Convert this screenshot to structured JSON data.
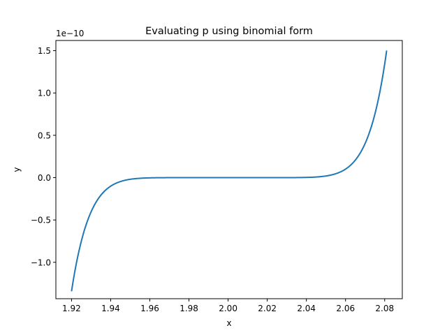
{
  "chart_data": {
    "type": "line",
    "title": "Evaluating p using binomial form",
    "xlabel": "x",
    "ylabel": "y",
    "y_offset_label": "1e−10",
    "xlim": [
      1.912,
      2.089
    ],
    "ylim": [
      -1.43e-10,
      1.62e-10
    ],
    "x_ticks": [
      1.92,
      1.94,
      1.96,
      1.98,
      2.0,
      2.02,
      2.04,
      2.06,
      2.08
    ],
    "x_tick_labels": [
      "1.92",
      "1.94",
      "1.96",
      "1.98",
      "2.00",
      "2.02",
      "2.04",
      "2.06",
      "2.08"
    ],
    "y_ticks": [
      -1e-10,
      -5e-11,
      0,
      5e-11,
      1e-10,
      1.5e-10
    ],
    "y_tick_labels": [
      "−1.0",
      "−0.5",
      "0.0",
      "0.5",
      "1.0",
      "1.5"
    ],
    "grid": false,
    "series": [
      {
        "color": "#1f77b4",
        "function": "(x-2)^9",
        "x_start": 1.92,
        "x_end": 2.081
      }
    ]
  }
}
